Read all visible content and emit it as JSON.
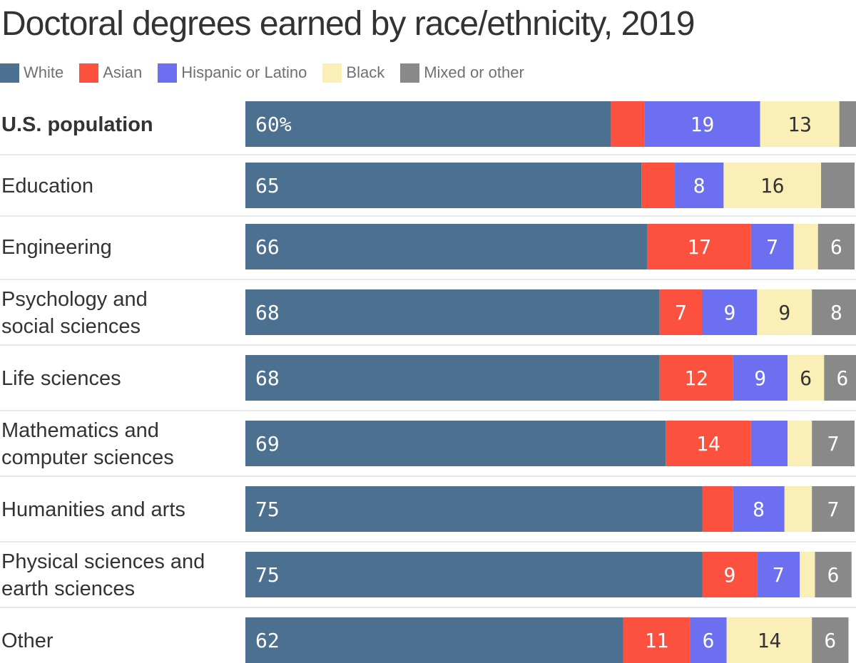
{
  "chart_data": {
    "type": "bar",
    "orientation": "horizontal",
    "stacked": true,
    "title": "Doctoral degrees earned by race/ethnicity, 2019",
    "xlim": [
      0,
      100
    ],
    "legend_position": "top-left",
    "categories": [
      "U.S. population",
      "Education",
      "Engineering",
      "Psychology and social sciences",
      "Life sciences",
      "Mathematics and computer sciences",
      "Humanities and arts",
      "Physical sciences and earth sciences",
      "Other"
    ],
    "category_lines": [
      [
        "U.S. population"
      ],
      [
        "Education"
      ],
      [
        "Engineering"
      ],
      [
        "Psychology and",
        "social sciences"
      ],
      [
        "Life sciences"
      ],
      [
        "Mathematics and",
        "computer sciences"
      ],
      [
        "Humanities and arts"
      ],
      [
        "Physical sciences and",
        "earth sciences"
      ],
      [
        "Other"
      ]
    ],
    "highlight_category": "U.S. population",
    "series": [
      {
        "name": "White",
        "color": "#4c7190",
        "label_color": "#ffffff",
        "values": [
          60,
          65,
          66,
          68,
          68,
          69,
          75,
          75,
          62
        ]
      },
      {
        "name": "Asian",
        "color": "#fd5140",
        "label_color": "#ffffff",
        "values": [
          5.5,
          5.5,
          17,
          7,
          12,
          14,
          5,
          9,
          11
        ]
      },
      {
        "name": "Hispanic or Latino",
        "color": "#6b6ff0",
        "label_color": "#ffffff",
        "values": [
          19,
          8,
          7,
          9,
          9,
          6,
          8.5,
          7,
          6
        ]
      },
      {
        "name": "Black",
        "color": "#f9efb7",
        "label_color": "#333333",
        "values": [
          13,
          16,
          4,
          9,
          6,
          4,
          4.5,
          2.5,
          14
        ]
      },
      {
        "name": "Mixed or other",
        "color": "#898989",
        "label_color": "#ffffff",
        "values": [
          3.5,
          5.5,
          6,
          8,
          6,
          7,
          7,
          6,
          6
        ]
      }
    ],
    "data_labels": [
      [
        "60%",
        "",
        "19",
        "13",
        ""
      ],
      [
        "65",
        "",
        "8",
        "16",
        ""
      ],
      [
        "66",
        "17",
        "7",
        "",
        "6"
      ],
      [
        "68",
        "7",
        "9",
        "9",
        "8"
      ],
      [
        "68",
        "12",
        "9",
        "6",
        "6"
      ],
      [
        "69",
        "14",
        "",
        "",
        "7"
      ],
      [
        "75",
        "",
        "8",
        "",
        "7"
      ],
      [
        "75",
        "9",
        "7",
        "",
        "6"
      ],
      [
        "62",
        "11",
        "6",
        "14",
        "6"
      ]
    ]
  }
}
